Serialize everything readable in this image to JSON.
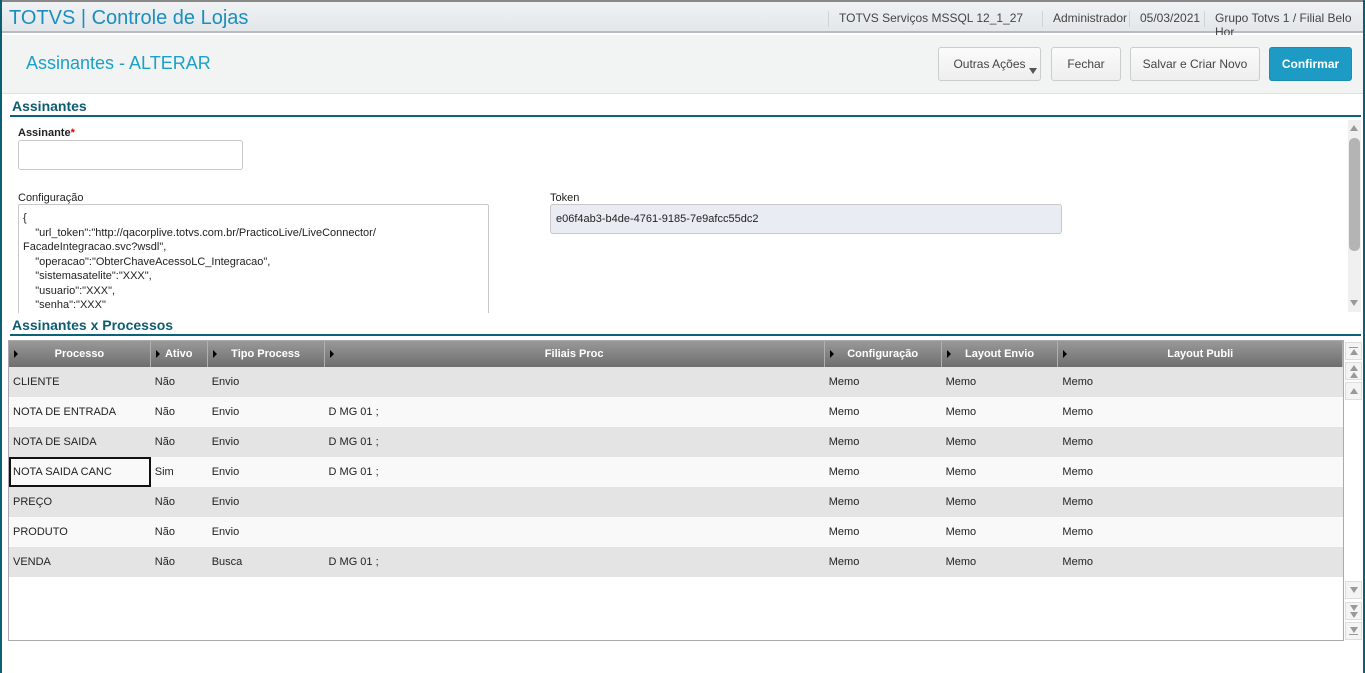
{
  "app": {
    "title": "TOTVS | Controle de Lojas",
    "environment": "TOTVS Serviços MSSQL 12_1_27",
    "user": "Administrador",
    "date": "05/03/2021",
    "branch": "Grupo Totvs 1 / Filial Belo Hor"
  },
  "header": {
    "title": "Assinantes - ALTERAR",
    "buttons": {
      "other": "Outras Ações",
      "close": "Fechar",
      "save_new": "Salvar e Criar Novo",
      "confirm": "Confirmar"
    }
  },
  "form": {
    "section": "Assinantes",
    "assinante_label": "Assinante",
    "required_mark": "*",
    "assinante_value": "",
    "config_label": "Configuração",
    "config_value": "{\n    \"url_token\":\"http://qacorplive.totvs.com.br/PracticoLive/LiveConnector/\nFacadeIntegracao.svc?wsdl\",\n    \"operacao\":\"ObterChaveAcessoLC_Integracao\",\n    \"sistemasatelite\":\"XXX\",\n    \"usuario\":\"XXX\",\n    \"senha\":\"XXX\"\n}",
    "token_label": "Token",
    "token_value": "e06f4ab3-b4de-4761-9185-7e9afcc55dc2"
  },
  "grid": {
    "section": "Assinantes x Processos",
    "columns": [
      "Processo",
      "Ativo",
      "Tipo Process",
      "Filiais Proc",
      "Configuração",
      "Layout Envio",
      "Layout Publi"
    ],
    "rows": [
      [
        "CLIENTE",
        "Não",
        "Envio",
        "",
        "Memo",
        "Memo",
        "Memo"
      ],
      [
        "NOTA DE ENTRADA",
        "Não",
        "Envio",
        "D MG 01 ;",
        "Memo",
        "Memo",
        "Memo"
      ],
      [
        "NOTA DE SAIDA",
        "Não",
        "Envio",
        "D MG 01 ;",
        "Memo",
        "Memo",
        "Memo"
      ],
      [
        "NOTA SAIDA CANC",
        "Sim",
        "Envio",
        "D MG 01 ;",
        "Memo",
        "Memo",
        "Memo"
      ],
      [
        "PREÇO",
        "Não",
        "Envio",
        "",
        "Memo",
        "Memo",
        "Memo"
      ],
      [
        "PRODUTO",
        "Não",
        "Envio",
        "",
        "Memo",
        "Memo",
        "Memo"
      ],
      [
        "VENDA",
        "Não",
        "Busca",
        "D MG 01 ;",
        "Memo",
        "Memo",
        "Memo"
      ]
    ],
    "selected_row": 3
  },
  "colors": {
    "accent": "#1e9bc4",
    "section": "#0b6378"
  }
}
